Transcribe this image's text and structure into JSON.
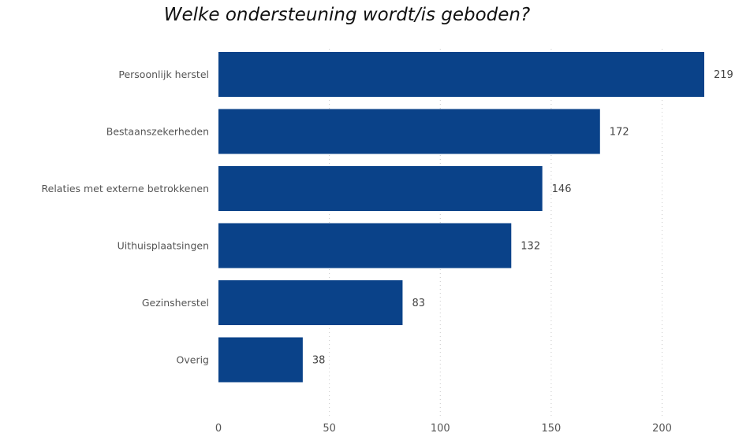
{
  "chart_data": {
    "type": "bar",
    "orientation": "horizontal",
    "title": "Welke ondersteuning wordt/is geboden?",
    "categories": [
      "Persoonlijk herstel",
      "Bestaanszekerheden",
      "Relaties met externe betrokkenen",
      "Uithuisplaatsingen",
      "Gezinsherstel",
      "Overig"
    ],
    "values": [
      219,
      172,
      146,
      132,
      83,
      38
    ],
    "data_labels": [
      "219",
      "172",
      "146",
      "132",
      "83",
      "38"
    ],
    "x_ticks": [
      0,
      50,
      100,
      150,
      200
    ],
    "x_tick_labels": [
      "0",
      "50",
      "100",
      "150",
      "200"
    ],
    "xlim": [
      0,
      219
    ],
    "xlabel": "",
    "ylabel": "",
    "grid": "vertical-dotted",
    "bar_color": "#0A4289"
  }
}
